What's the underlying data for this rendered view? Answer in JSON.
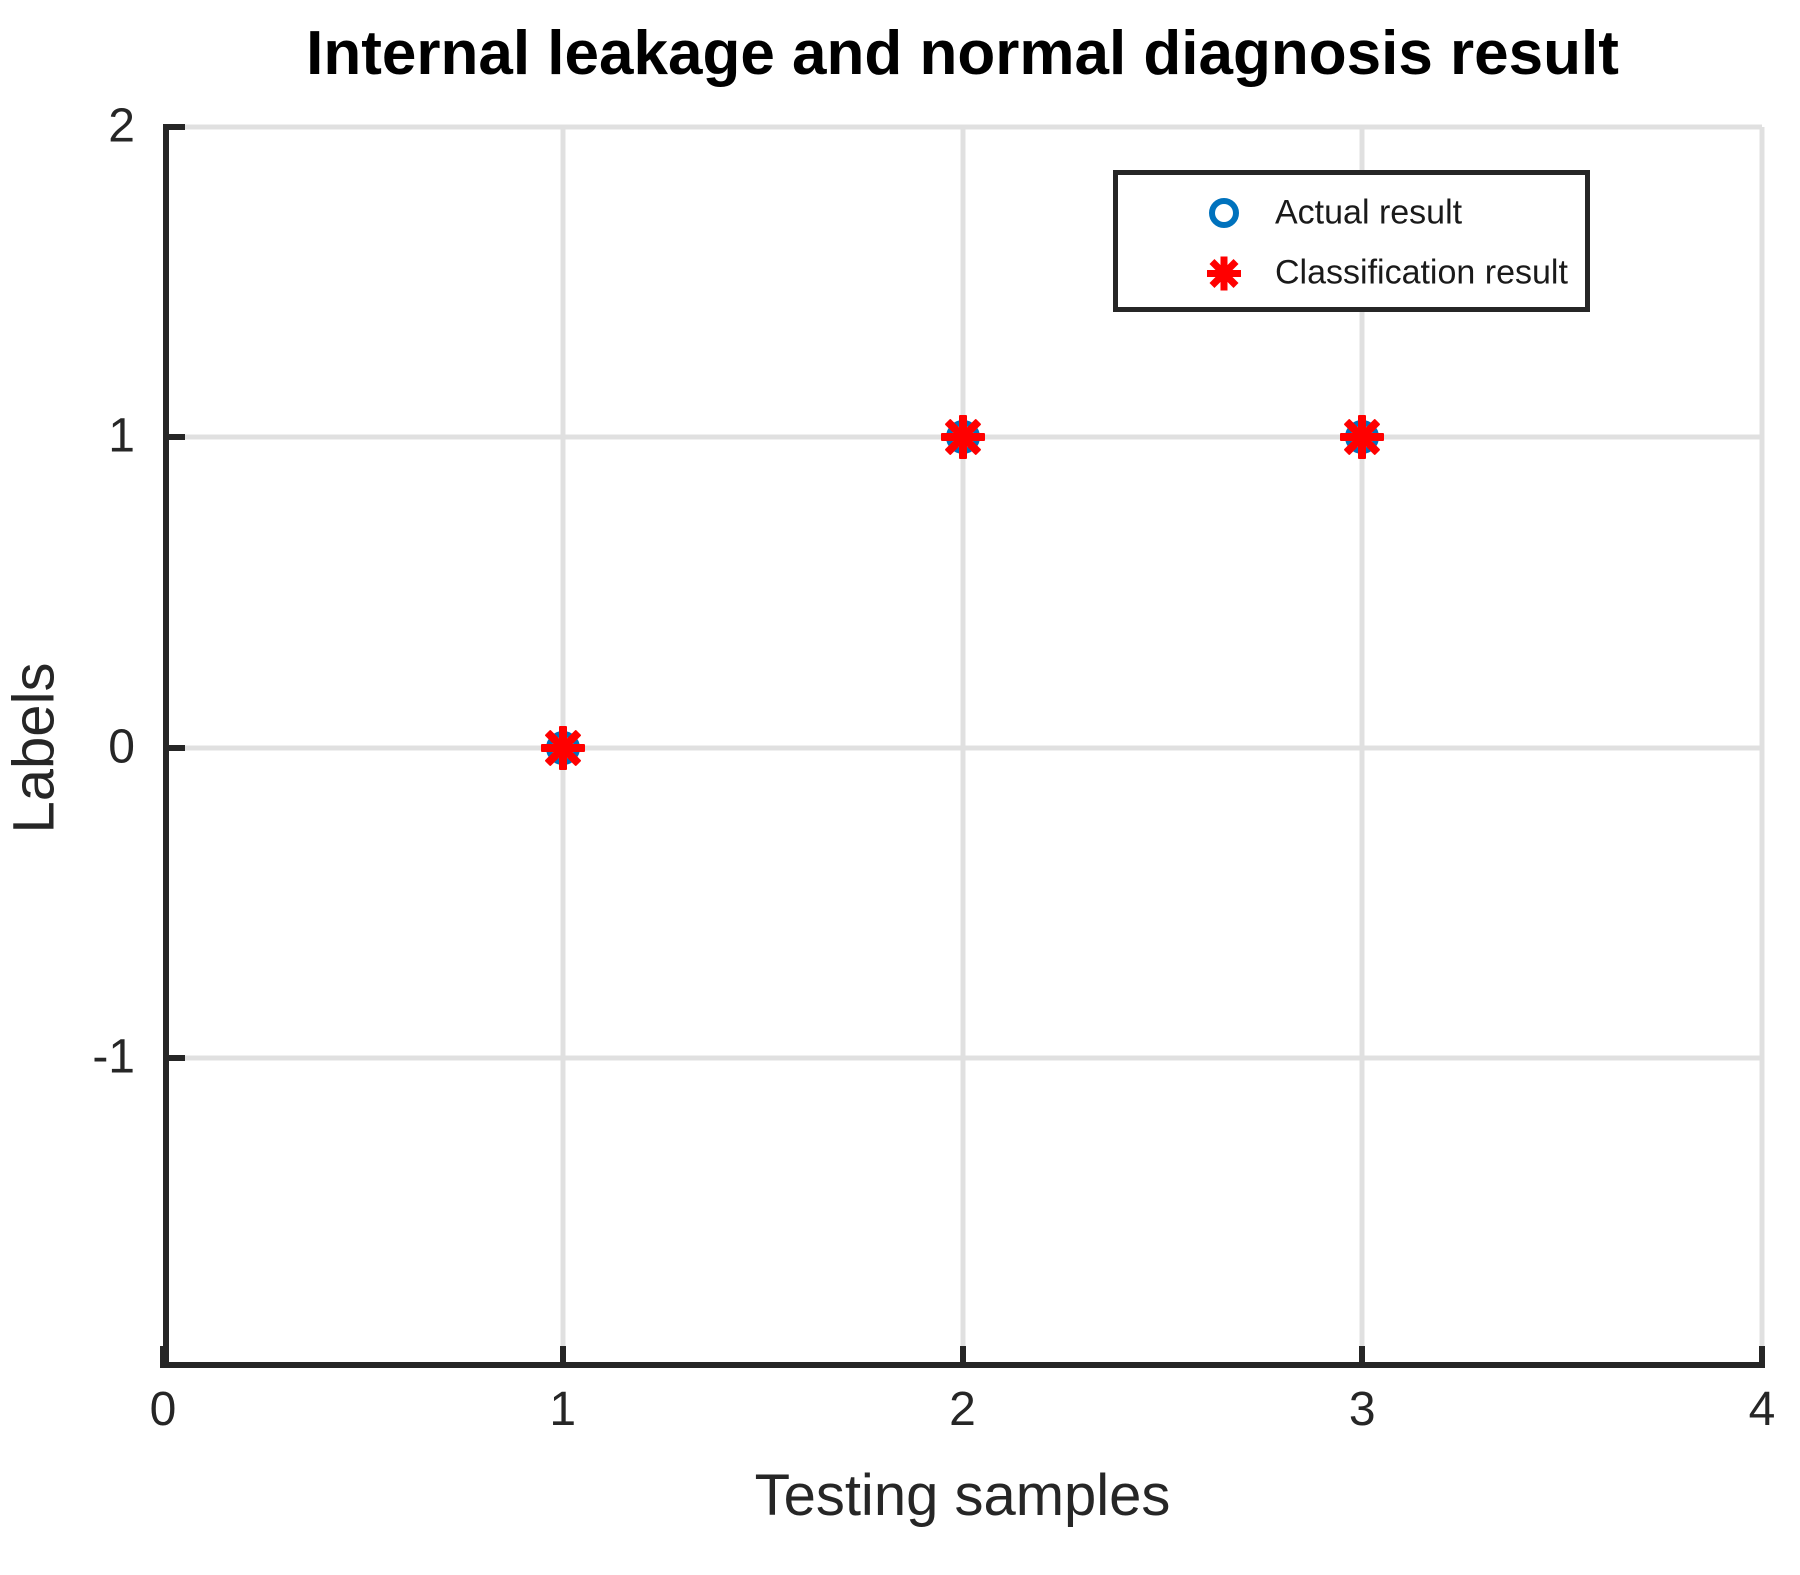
{
  "title": "Internal leakage and normal diagnosis result",
  "axes": {
    "xlabel": "Testing samples",
    "ylabel": "Labels"
  },
  "legend": {
    "entries": [
      {
        "label": "Actual result",
        "marker": "circle",
        "color": "#0072BD"
      },
      {
        "label": "Classification result",
        "marker": "asterisk",
        "color": "#FF0000"
      }
    ]
  },
  "colors": {
    "axis": "#262626",
    "grid": "#e0e0e0",
    "actual": "#0072BD",
    "classification": "#FF0000",
    "background": "#ffffff"
  },
  "chart_data": {
    "type": "scatter",
    "title": "Internal leakage and normal diagnosis result",
    "xlabel": "Testing samples",
    "ylabel": "Labels",
    "xlim": [
      0,
      4
    ],
    "ylim": [
      -2,
      2
    ],
    "x_ticks": [
      0,
      1,
      2,
      3,
      4
    ],
    "y_ticks": [
      -1,
      0,
      1,
      2
    ],
    "x_gridlines": [
      1,
      2,
      3,
      4
    ],
    "y_gridlines": [
      -1,
      0,
      1,
      2
    ],
    "grid": true,
    "legend_position": "top-right",
    "series": [
      {
        "name": "Actual result",
        "marker": "circle",
        "color": "#0072BD",
        "x": [
          1,
          2,
          3
        ],
        "y": [
          0,
          1,
          1
        ]
      },
      {
        "name": "Classification result",
        "marker": "asterisk",
        "color": "#FF0000",
        "x": [
          1,
          2,
          3
        ],
        "y": [
          0,
          1,
          1
        ]
      }
    ]
  }
}
